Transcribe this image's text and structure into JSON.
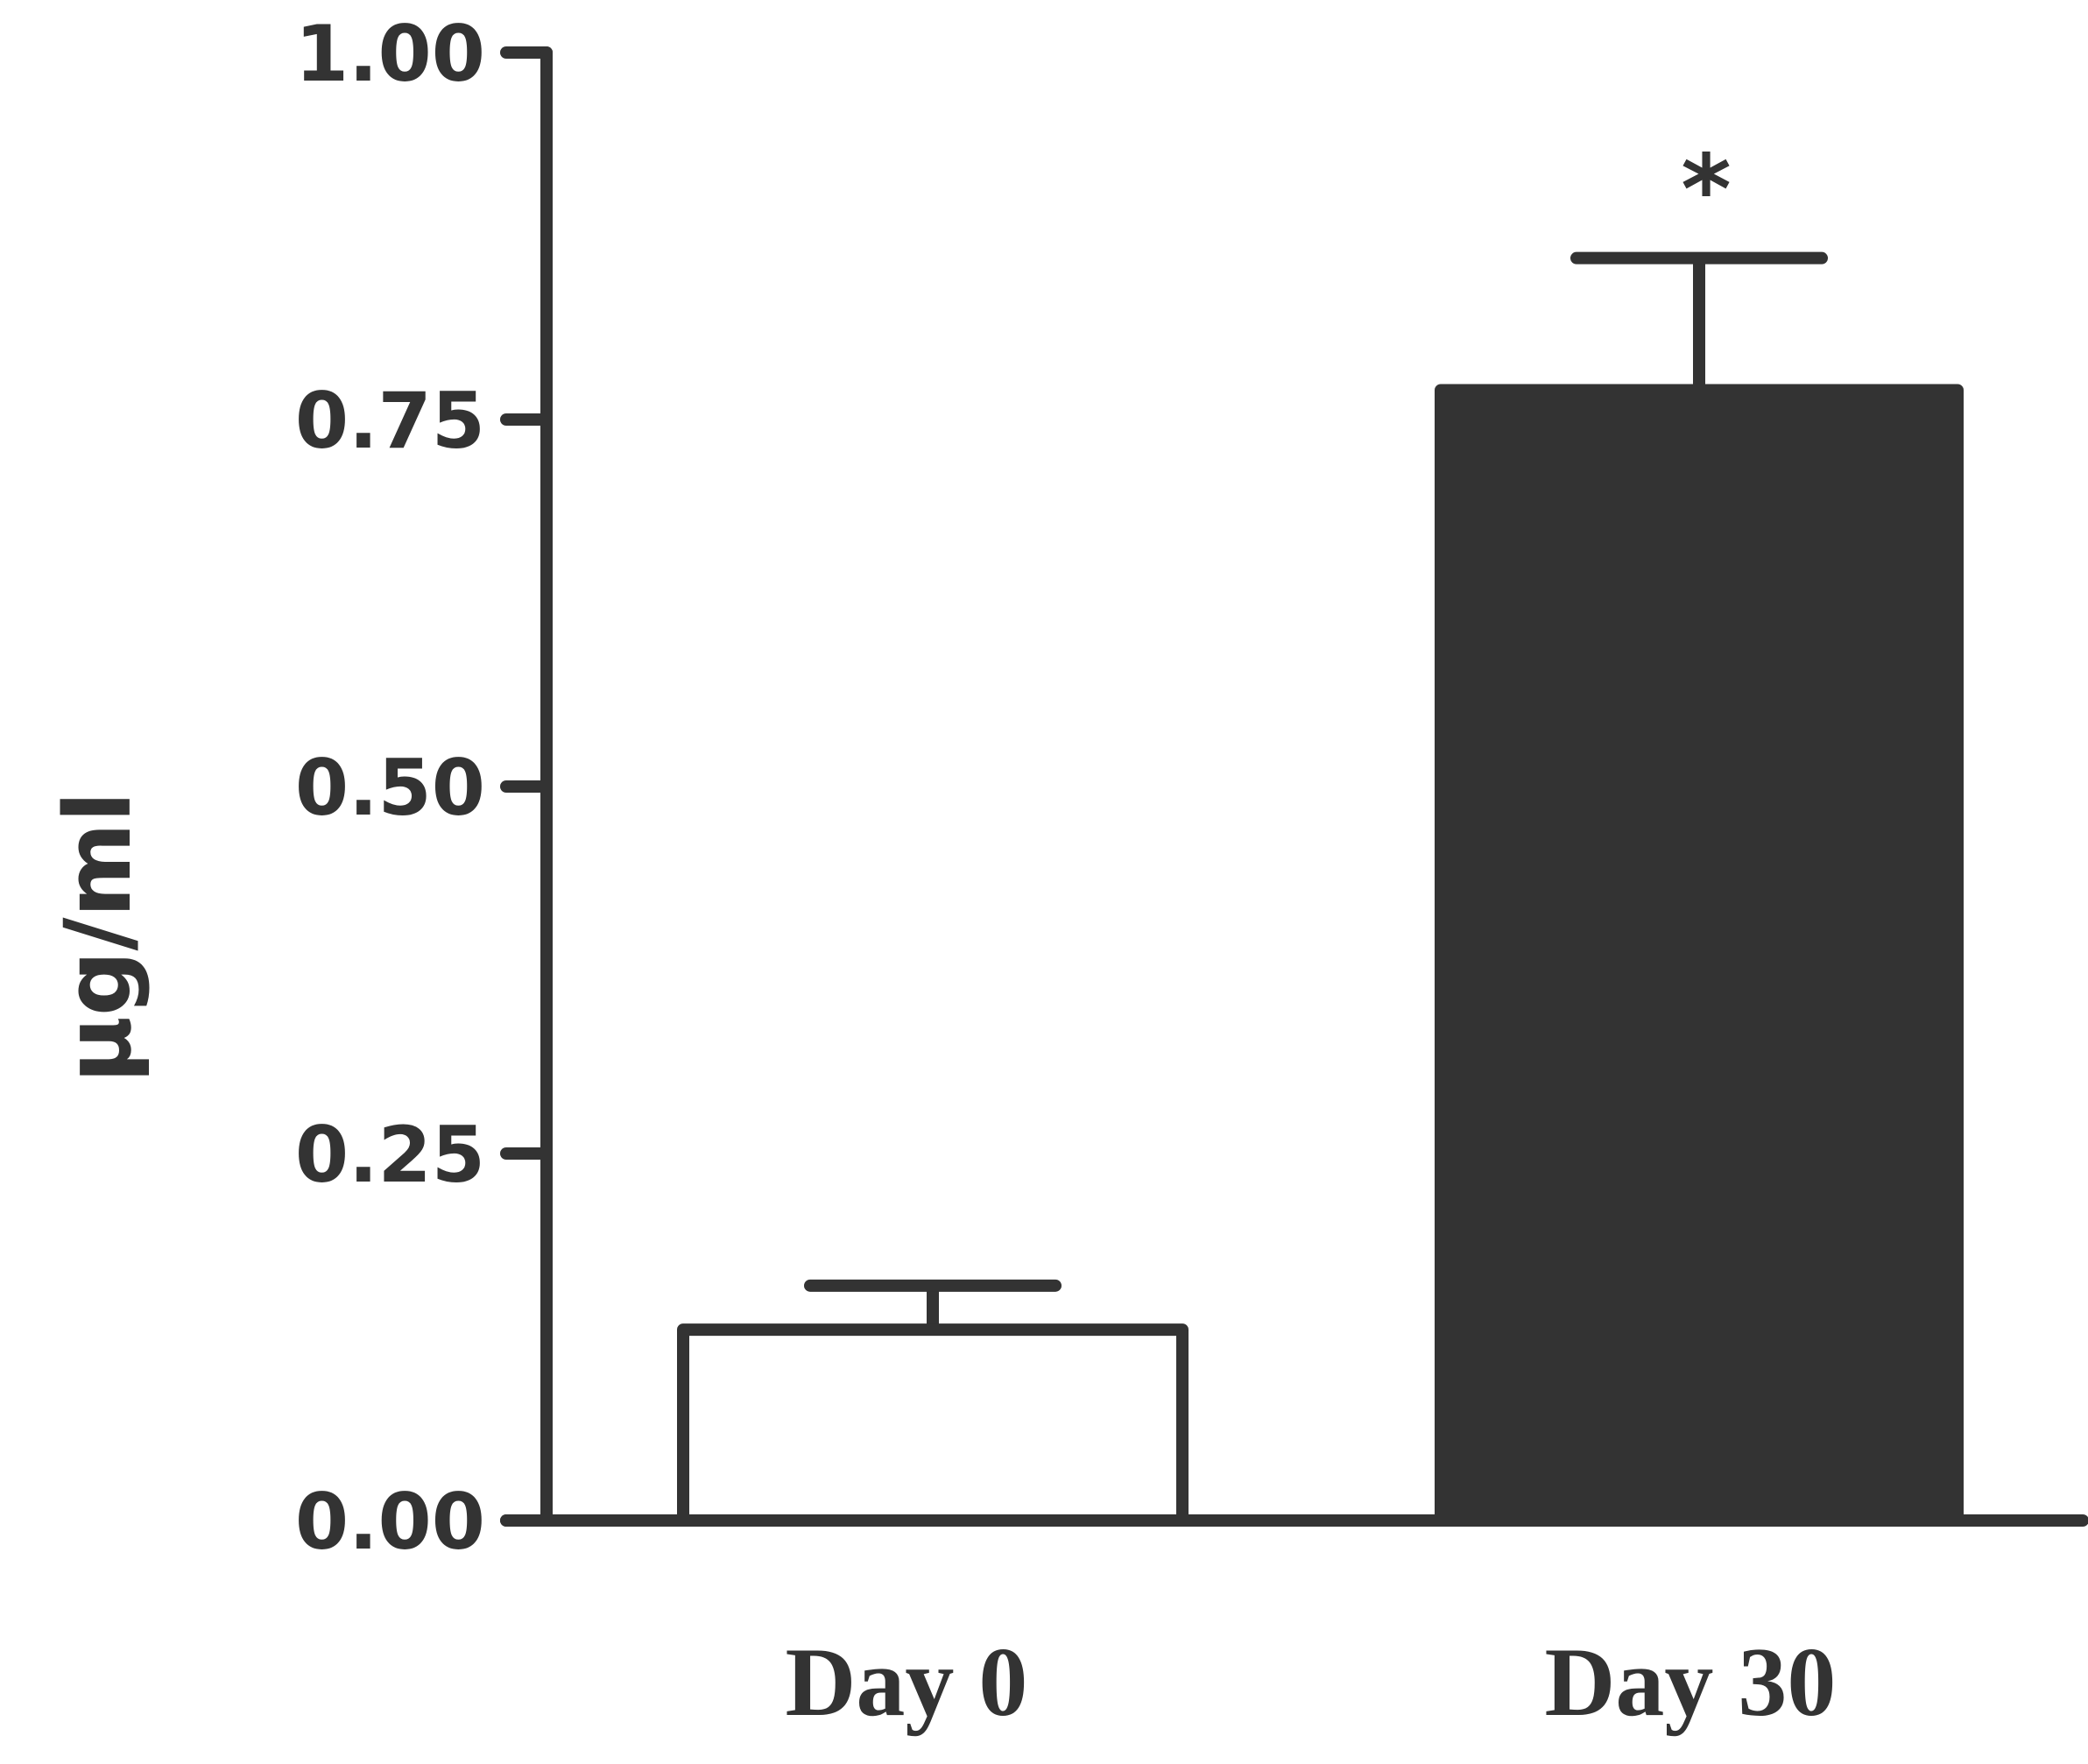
{
  "chart_data": {
    "type": "bar",
    "categories": [
      "Day 0",
      "Day 30"
    ],
    "values": [
      0.13,
      0.77
    ],
    "errors": [
      0.03,
      0.09
    ],
    "bar_fill": [
      "#ffffff",
      "#333333"
    ],
    "annotations": [
      "",
      "*"
    ],
    "ylabel": "µg/ml",
    "ylim": [
      0,
      1
    ],
    "yticks": [
      {
        "value": 0,
        "label": "0.00"
      },
      {
        "value": 0.25,
        "label": "0.25"
      },
      {
        "value": 0.5,
        "label": "0.50"
      },
      {
        "value": 0.75,
        "label": "0.75"
      },
      {
        "value": 1,
        "label": "1.00"
      }
    ],
    "grid": false,
    "legend": "none",
    "colors": {
      "ink": "#333333",
      "background": "#ffffff"
    }
  }
}
